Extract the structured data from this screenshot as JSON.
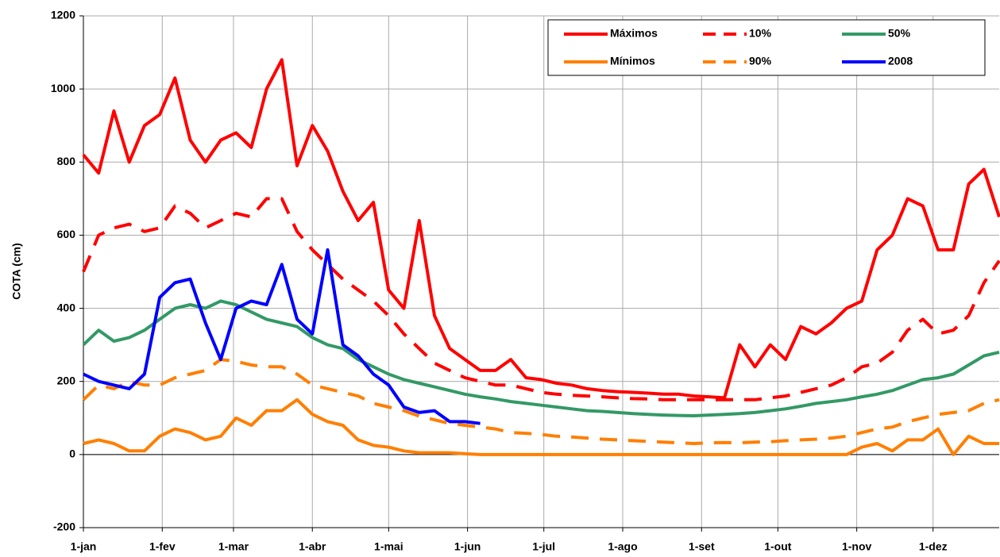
{
  "chart_data": {
    "type": "line",
    "y_label": "COTA (cm)",
    "x": [
      0,
      6,
      12,
      18,
      24,
      30,
      36,
      42,
      48,
      54,
      60,
      66,
      72,
      78,
      84,
      90,
      96,
      102,
      108,
      114,
      120,
      126,
      132,
      138,
      144,
      150,
      156,
      162,
      168,
      174,
      180,
      186,
      192,
      198,
      204,
      210,
      216,
      222,
      228,
      234,
      240,
      246,
      252,
      258,
      264,
      270,
      276,
      282,
      288,
      294,
      300,
      306,
      312,
      318,
      324,
      330,
      336,
      342,
      348,
      354,
      360
    ],
    "xlim": [
      0,
      360
    ],
    "xticks": [
      {
        "value": 0,
        "label": "1-jan"
      },
      {
        "value": 31,
        "label": "1-fev"
      },
      {
        "value": 59,
        "label": "1-mar"
      },
      {
        "value": 90,
        "label": "1-abr"
      },
      {
        "value": 120,
        "label": "1-mai"
      },
      {
        "value": 151,
        "label": "1-jun"
      },
      {
        "value": 181,
        "label": "1-jul"
      },
      {
        "value": 212,
        "label": "1-ago"
      },
      {
        "value": 243,
        "label": "1-set"
      },
      {
        "value": 273,
        "label": "1-out"
      },
      {
        "value": 304,
        "label": "1-nov"
      },
      {
        "value": 334,
        "label": "1-dez"
      }
    ],
    "ylim": [
      -200,
      1200
    ],
    "yticks": [
      -200,
      0,
      200,
      400,
      600,
      800,
      1000,
      1200
    ],
    "grid": true,
    "legend": "top-right",
    "series": [
      {
        "name": "Máximos",
        "color": "#ff0000",
        "style": "solid",
        "values": [
          820,
          770,
          940,
          800,
          900,
          930,
          1030,
          860,
          800,
          860,
          880,
          840,
          1000,
          1080,
          790,
          900,
          830,
          720,
          640,
          690,
          450,
          400,
          640,
          380,
          290,
          260,
          230,
          230,
          260,
          210,
          205,
          195,
          190,
          180,
          175,
          172,
          170,
          168,
          165,
          165,
          160,
          158,
          155,
          300,
          240,
          300,
          260,
          350,
          330,
          360,
          400,
          420,
          560,
          600,
          700,
          680,
          560,
          560,
          740,
          780,
          650
        ]
      },
      {
        "name": "Mínimos",
        "color": "#ff7f00",
        "style": "solid",
        "values": [
          30,
          40,
          30,
          10,
          10,
          50,
          70,
          60,
          40,
          50,
          100,
          80,
          120,
          120,
          150,
          110,
          90,
          80,
          40,
          25,
          20,
          10,
          5,
          5,
          5,
          2,
          0,
          0,
          0,
          0,
          0,
          0,
          0,
          0,
          0,
          0,
          0,
          0,
          0,
          0,
          0,
          0,
          0,
          0,
          0,
          0,
          0,
          0,
          0,
          0,
          0,
          20,
          30,
          10,
          40,
          40,
          70,
          0,
          50,
          30,
          30
        ]
      },
      {
        "name": "10%",
        "color": "#ff0000",
        "style": "dashed",
        "values": [
          500,
          600,
          620,
          630,
          610,
          620,
          680,
          660,
          620,
          640,
          660,
          650,
          700,
          700,
          610,
          560,
          520,
          480,
          450,
          420,
          380,
          330,
          290,
          250,
          230,
          210,
          200,
          190,
          190,
          180,
          170,
          165,
          162,
          160,
          158,
          155,
          153,
          152,
          150,
          150,
          150,
          150,
          150,
          150,
          150,
          155,
          160,
          170,
          180,
          190,
          210,
          240,
          250,
          280,
          340,
          370,
          330,
          340,
          380,
          470,
          530
        ]
      },
      {
        "name": "90%",
        "color": "#ff7f00",
        "style": "dashed",
        "values": [
          150,
          190,
          180,
          200,
          190,
          190,
          210,
          220,
          230,
          260,
          255,
          245,
          240,
          240,
          220,
          190,
          180,
          170,
          160,
          140,
          130,
          120,
          105,
          95,
          85,
          80,
          75,
          70,
          60,
          58,
          55,
          50,
          48,
          45,
          42,
          40,
          38,
          36,
          34,
          32,
          30,
          32,
          33,
          32,
          34,
          35,
          38,
          40,
          42,
          45,
          50,
          60,
          70,
          75,
          90,
          100,
          110,
          115,
          120,
          140,
          150
        ]
      },
      {
        "name": "50%",
        "color": "#339966",
        "style": "solid",
        "values": [
          300,
          340,
          310,
          320,
          340,
          370,
          400,
          410,
          400,
          420,
          410,
          390,
          370,
          360,
          350,
          320,
          300,
          290,
          260,
          240,
          220,
          205,
          195,
          185,
          175,
          165,
          158,
          152,
          145,
          140,
          135,
          130,
          125,
          120,
          118,
          115,
          112,
          110,
          108,
          107,
          106,
          108,
          110,
          112,
          115,
          120,
          125,
          132,
          140,
          145,
          150,
          158,
          165,
          175,
          190,
          205,
          210,
          220,
          245,
          270,
          280
        ]
      },
      {
        "name": "2008",
        "color": "#0000ff",
        "style": "solid",
        "values": [
          220,
          200,
          190,
          180,
          220,
          430,
          470,
          480,
          360,
          260,
          400,
          420,
          410,
          520,
          370,
          330,
          560,
          300,
          270,
          220,
          190,
          130,
          115,
          120,
          90,
          90,
          85,
          null,
          null,
          null,
          null,
          null,
          null,
          null,
          null,
          null,
          null,
          null,
          null,
          null,
          null,
          null,
          null,
          null,
          null,
          null,
          null,
          null,
          null,
          null,
          null,
          null,
          null,
          null,
          null,
          null,
          null,
          null,
          null,
          null,
          null
        ]
      }
    ]
  }
}
